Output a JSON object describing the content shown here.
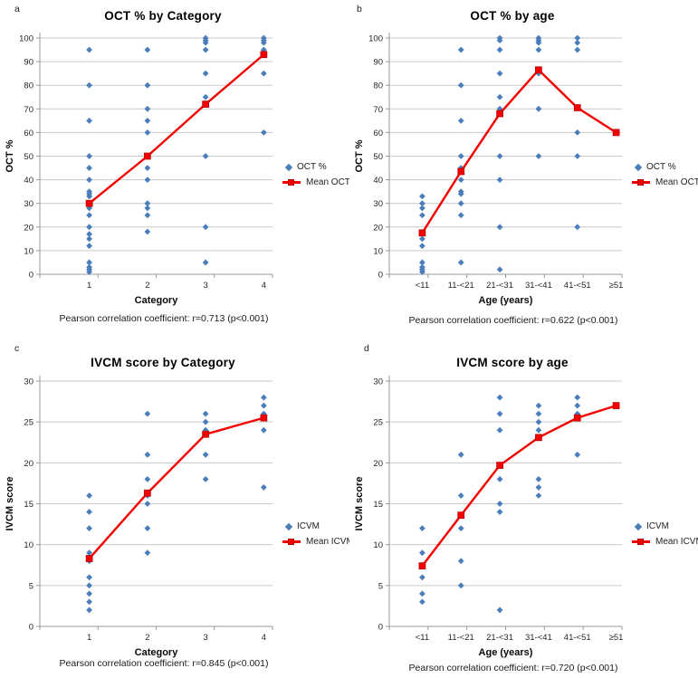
{
  "colors": {
    "point": "#4a7ebb",
    "mean": "#f40000"
  },
  "chart_data": [
    {
      "type": "scatter",
      "panel_label": "a",
      "title": "OCT % by Category",
      "xlabel": "Category",
      "ylabel": "OCT %",
      "caption": "Pearson correlation coefficient: r=0.713 (p<0.001)",
      "categories": [
        "1",
        "2",
        "3",
        "4"
      ],
      "ylim": [
        0,
        100
      ],
      "ytick_step": 10,
      "grid": true,
      "legend_position": "right",
      "series": [
        {
          "name": "OCT %",
          "type": "points",
          "values_by_category": [
            [
              95,
              80,
              65,
              50,
              45,
              40,
              35,
              34,
              33,
              28,
              25,
              20,
              17,
              15,
              12,
              5,
              3,
              2,
              1
            ],
            [
              95,
              80,
              70,
              65,
              60,
              50,
              45,
              40,
              30,
              28,
              25,
              18
            ],
            [
              100,
              99,
              98,
              95,
              85,
              75,
              50,
              20,
              5
            ],
            [
              100,
              99,
              98,
              95,
              85,
              60
            ]
          ]
        },
        {
          "name": "Mean OCT %",
          "type": "line",
          "values": [
            30,
            50,
            72,
            93
          ]
        }
      ]
    },
    {
      "type": "scatter",
      "panel_label": "b",
      "title": "OCT % by age",
      "xlabel": "Age (years)",
      "ylabel": "OCT %",
      "caption": "Pearson correlation coefficient: r=0.622 (p<0.001)",
      "categories": [
        "<11",
        "11-<21",
        "21-<31",
        "31-<41",
        "41-<51",
        "≥51"
      ],
      "ylim": [
        0,
        100
      ],
      "ytick_step": 10,
      "grid": true,
      "legend_position": "right",
      "series": [
        {
          "name": "OCT %",
          "type": "points",
          "values_by_category": [
            [
              33,
              30,
              28,
              25,
              17,
              15,
              12,
              5,
              3,
              2,
              1
            ],
            [
              95,
              80,
              65,
              50,
              45,
              40,
              35,
              34,
              30,
              25,
              5
            ],
            [
              100,
              99,
              95,
              85,
              75,
              70,
              50,
              40,
              20,
              2
            ],
            [
              100,
              99,
              98,
              95,
              85,
              70,
              50
            ],
            [
              100,
              98,
              95,
              60,
              50,
              20
            ],
            [
              60
            ]
          ]
        },
        {
          "name": "Mean OCT %",
          "type": "line",
          "values": [
            17.5,
            43.5,
            68,
            86.5,
            70.5,
            60
          ]
        }
      ]
    },
    {
      "type": "scatter",
      "panel_label": "c",
      "title": "IVCM score by Category",
      "xlabel": "Category",
      "ylabel": "IVCM score",
      "caption": "Pearson correlation coefficient: r=0.845 (p<0.001)",
      "categories": [
        "1",
        "2",
        "3",
        "4"
      ],
      "ylim": [
        0,
        30
      ],
      "ytick_step": 5,
      "grid": true,
      "legend_position": "right",
      "series": [
        {
          "name": "ICVM",
          "type": "points",
          "values_by_category": [
            [
              16,
              14,
              12,
              9,
              8,
              6,
              5,
              4,
              3,
              2
            ],
            [
              26,
              21,
              18,
              16,
              15,
              12,
              9
            ],
            [
              26,
              25,
              24,
              21,
              18
            ],
            [
              28,
              27,
              26,
              24,
              17
            ]
          ]
        },
        {
          "name": "Mean ICVM",
          "type": "line",
          "values": [
            8.3,
            16.3,
            23.5,
            25.5
          ]
        }
      ]
    },
    {
      "type": "scatter",
      "panel_label": "d",
      "title": "IVCM score by age",
      "xlabel": "Age (years)",
      "ylabel": "IVCM score",
      "caption": "Pearson correlation coefficient: r=0.720 (p<0.001)",
      "categories": [
        "<11",
        "11-<21",
        "21-<31",
        "31-<41",
        "41-<51",
        "≥51"
      ],
      "ylim": [
        0,
        30
      ],
      "ytick_step": 5,
      "grid": true,
      "legend_position": "right",
      "series": [
        {
          "name": "ICVM",
          "type": "points",
          "values_by_category": [
            [
              12,
              9,
              6,
              4,
              3
            ],
            [
              21,
              16,
              12,
              8,
              5
            ],
            [
              28,
              26,
              24,
              18,
              15,
              14,
              2
            ],
            [
              27,
              26,
              25,
              24,
              18,
              17,
              16
            ],
            [
              28,
              27,
              26,
              21
            ],
            [
              27
            ]
          ]
        },
        {
          "name": "Mean ICVM",
          "type": "line",
          "values": [
            7.4,
            13.6,
            19.7,
            23.1,
            25.5,
            27
          ]
        }
      ]
    }
  ]
}
